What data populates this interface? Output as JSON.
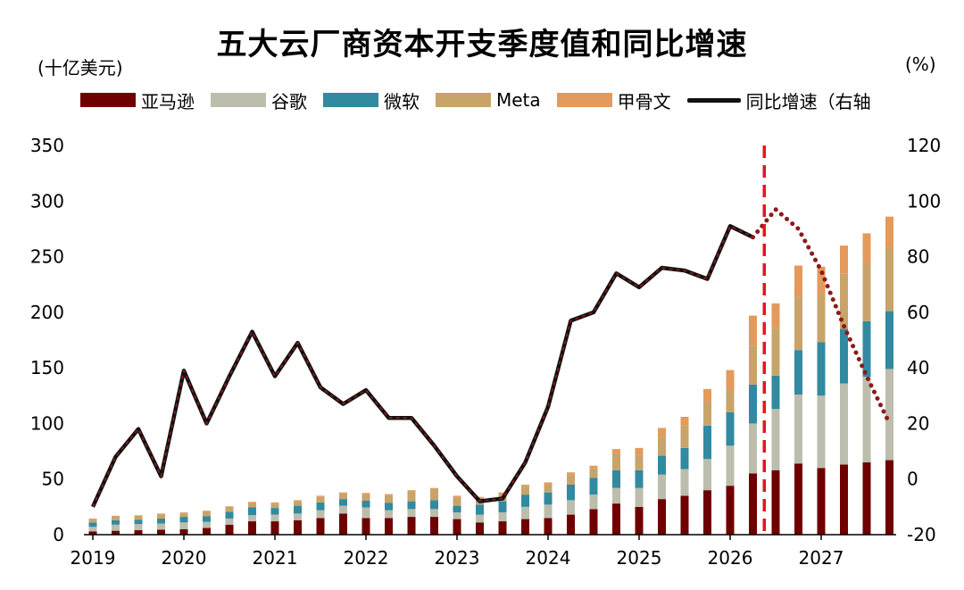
{
  "title": "五大云厂商资本开支季度值和同比增速",
  "left_unit": "(十亿美元)",
  "right_unit": "(%)",
  "colors": {
    "amazon": "#6e0000",
    "google": "#bdbdad",
    "microsoft": "#318aa0",
    "meta": "#c8a46a",
    "oracle": "#e39a5b",
    "growth_line": "#111111",
    "growth_dash": "#8b1a1a",
    "forecast_divider": "#e8141e"
  },
  "legend": [
    {
      "label": "亚马逊",
      "kind": "bar",
      "color": "#6e0000"
    },
    {
      "label": "谷歌",
      "kind": "bar",
      "color": "#bdbdad"
    },
    {
      "label": "微软",
      "kind": "bar",
      "color": "#318aa0"
    },
    {
      "label": "Meta",
      "kind": "bar",
      "color": "#c8a46a"
    },
    {
      "label": "甲骨文",
      "kind": "bar",
      "color": "#e39a5b"
    },
    {
      "label": "同比增速（右轴",
      "kind": "line",
      "color": "#111111"
    }
  ],
  "chart_data": {
    "type": "bar",
    "stacked": true,
    "x_tick_labels": [
      "2019",
      "2020",
      "2021",
      "2022",
      "2023",
      "2024",
      "2025",
      "2026",
      "2027"
    ],
    "categories": [
      "2019Q1",
      "2019Q2",
      "2019Q3",
      "2019Q4",
      "2020Q1",
      "2020Q2",
      "2020Q3",
      "2020Q4",
      "2021Q1",
      "2021Q2",
      "2021Q3",
      "2021Q4",
      "2022Q1",
      "2022Q2",
      "2022Q3",
      "2022Q4",
      "2023Q1",
      "2023Q2",
      "2023Q3",
      "2023Q4",
      "2024Q1",
      "2024Q2",
      "2024Q3",
      "2024Q4",
      "2025Q1",
      "2025Q2",
      "2025Q3",
      "2025Q4",
      "2026Q1",
      "2026Q2",
      "2026Q3",
      "2026Q4",
      "2027Q1",
      "2027Q2",
      "2027Q3",
      "2027Q4"
    ],
    "series": [
      {
        "name": "亚马逊",
        "values": [
          3,
          3.5,
          4,
          4.5,
          5,
          6,
          9,
          12,
          12,
          13,
          15,
          19,
          15,
          15,
          16,
          16,
          14,
          11,
          12,
          14,
          15,
          18,
          23,
          28,
          25,
          32,
          35,
          40,
          44,
          55,
          58,
          64,
          60,
          63,
          65,
          67
        ]
      },
      {
        "name": "谷歌",
        "values": [
          4,
          5.5,
          5.5,
          5.5,
          6,
          5.5,
          5.5,
          5.5,
          6,
          6,
          7,
          7,
          9.5,
          7,
          7,
          7,
          6,
          7,
          8,
          11,
          12,
          13,
          13,
          14,
          17,
          22,
          24,
          28,
          36,
          45,
          55,
          62,
          65,
          73,
          77,
          82
        ]
      },
      {
        "name": "微软",
        "values": [
          4,
          4,
          4,
          4.5,
          5,
          5,
          6,
          7,
          6,
          7,
          7,
          6,
          6,
          6.5,
          7,
          8,
          6,
          9,
          10,
          11,
          11,
          14,
          15,
          16,
          16,
          17,
          19,
          30,
          30,
          35,
          30,
          40,
          48,
          49,
          50,
          52
        ]
      },
      {
        "name": "Meta",
        "values": [
          3,
          3.5,
          3.5,
          3.5,
          3,
          4,
          4,
          4,
          4,
          4,
          5,
          5,
          6,
          7,
          9,
          10,
          8,
          6,
          7,
          8,
          7,
          9,
          9,
          15,
          14,
          17,
          20,
          22,
          20,
          35,
          43,
          48,
          43,
          50,
          52,
          57
        ]
      },
      {
        "name": "甲骨文",
        "values": [
          0.5,
          0.5,
          0.5,
          1,
          1,
          1,
          1,
          1,
          1,
          1,
          1,
          1,
          1,
          1,
          1,
          1,
          1,
          1,
          1,
          1,
          2,
          2,
          2,
          4,
          6,
          8,
          8,
          11,
          18,
          27,
          22,
          28,
          25,
          25,
          27,
          28
        ]
      }
    ],
    "growth_rate": {
      "name": "同比增速（右轴",
      "axis": "right",
      "values": [
        -10,
        8,
        18,
        1,
        39,
        20,
        37,
        53,
        37,
        49,
        33,
        27,
        32,
        22,
        22,
        12,
        1,
        -8,
        -7,
        6,
        26,
        57,
        60,
        74,
        69,
        76,
        75,
        72,
        91,
        87,
        97,
        90,
        75,
        55,
        37,
        20
      ],
      "solid_end_index": 29,
      "forecast_start_index": 29
    },
    "forecast_divider_after_index": 29,
    "ylim_left": [
      0,
      350
    ],
    "yticks_left": [
      0,
      50,
      100,
      150,
      200,
      250,
      300,
      350
    ],
    "ylim_right": [
      -20,
      120
    ],
    "yticks_right": [
      -20,
      0,
      20,
      40,
      60,
      80,
      100,
      120
    ],
    "grid": false,
    "legend_position": "top"
  }
}
